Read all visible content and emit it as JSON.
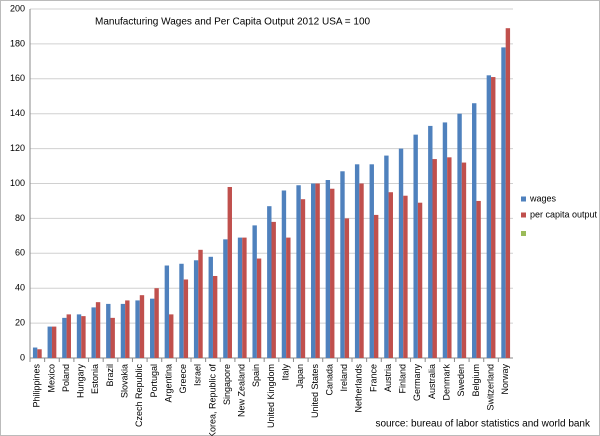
{
  "chart_data": {
    "type": "bar",
    "title": "Manufacturing Wages and Per Capita Output 2012  USA = 100",
    "source": "source: bureau of labor statistics and world bank",
    "categories": [
      "Philippines",
      "Mexico",
      "Poland",
      "Hungary",
      "Estonia",
      "Brazil",
      "Slovakia",
      "Czech Republic",
      "Portugal",
      "Argentina",
      "Greece",
      "Israel",
      "Korea, Republic of",
      "Singapore",
      "New Zealand",
      "Spain",
      "United Kingdom",
      "Italy",
      "Japan",
      "United States",
      "Canada",
      "Ireland",
      "Netherlands",
      "France",
      "Austria",
      "Finland",
      "Germany",
      "Australia",
      "Denmark",
      "Sweden",
      "Belgium",
      "Switzerland",
      "Norway"
    ],
    "series": [
      {
        "name": "wages",
        "color": "#4f81bd",
        "values": [
          6,
          18,
          23,
          25,
          29,
          31,
          31,
          33,
          34,
          53,
          54,
          56,
          58,
          68,
          69,
          76,
          87,
          96,
          99,
          100,
          102,
          107,
          111,
          111,
          116,
          120,
          128,
          133,
          135,
          140,
          146,
          162,
          178
        ]
      },
      {
        "name": "per capita output",
        "color": "#c0504d",
        "values": [
          5,
          18,
          25,
          24,
          32,
          23,
          33,
          36,
          40,
          25,
          45,
          62,
          47,
          98,
          69,
          57,
          78,
          69,
          91,
          100,
          97,
          80,
          100,
          82,
          95,
          93,
          89,
          114,
          115,
          112,
          90,
          161,
          189
        ]
      }
    ],
    "ylim": [
      0,
      200
    ],
    "yticks": [
      0,
      20,
      40,
      60,
      80,
      100,
      120,
      140,
      160,
      180,
      200
    ],
    "grid": true,
    "legend": "right"
  }
}
